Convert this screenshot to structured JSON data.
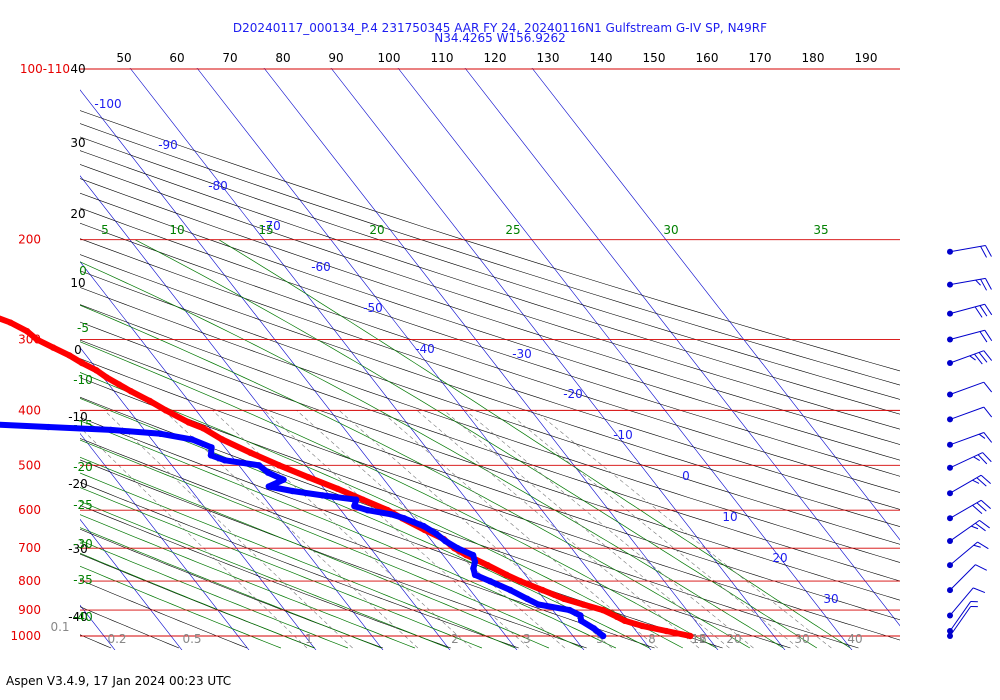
{
  "header": {
    "line1": "D20240117_000134_P.4 231750345 AAR FY 24, 20240116N1 Gulfstream G-IV SP, N49RF",
    "line2": "N34.4265 W156.9262"
  },
  "footer": {
    "version": "Aspen V3.4.9, 17 Jan 2024  00:23 UTC"
  },
  "colors": {
    "temperature": "#ff0000",
    "dewpoint": "#0000ff",
    "isobar": "#d40000",
    "isotherm": "#0000cc",
    "dry_adiabat": "#000000",
    "moist_adiabat": "#007700",
    "mixing_ratio": "#777777",
    "wind_barb": "#0000cc"
  },
  "chart_data": {
    "type": "skew-t",
    "pressure_labels": [
      {
        "label": "100-110",
        "p": 100
      },
      {
        "label": "200",
        "p": 200
      },
      {
        "label": "300",
        "p": 300
      },
      {
        "label": "400",
        "p": 400
      },
      {
        "label": "500",
        "p": 500
      },
      {
        "label": "600",
        "p": 600
      },
      {
        "label": "700",
        "p": 700
      },
      {
        "label": "800",
        "p": 800
      },
      {
        "label": "900",
        "p": 900
      },
      {
        "label": "1000",
        "p": 1000
      }
    ],
    "top_axis_ticks": [
      "50",
      "60",
      "70",
      "80",
      "90",
      "100",
      "110",
      "120",
      "130",
      "140",
      "150",
      "160",
      "170",
      "180",
      "190"
    ],
    "left_altitude_ticks": [
      "40",
      "30",
      "20",
      "10",
      "0",
      "-10",
      "-20",
      "-30",
      "-40"
    ],
    "moist_adiabat_labels": [
      "0",
      "-5",
      "-10",
      "-15",
      "-20",
      "-25",
      "-30",
      "-35",
      "-40"
    ],
    "isotherm_labels": [
      "-100",
      "-90",
      "-80",
      "-70",
      "-60",
      "-50",
      "-40",
      "-30",
      "-20",
      "-10",
      "0",
      "10",
      "20",
      "30"
    ],
    "theta_e_labels": [
      "5",
      "10",
      "15",
      "20",
      "25",
      "30",
      "35"
    ],
    "mixing_ratio_labels": [
      "0.1",
      "0.2",
      "0.5",
      "1",
      "2",
      "3",
      "5",
      "8",
      "12",
      "16",
      "20",
      "30",
      "40"
    ],
    "temperature_profile": [
      {
        "p": 1000,
        "t": 17.5
      },
      {
        "p": 980,
        "t": 14.5
      },
      {
        "p": 960,
        "t": 11.5
      },
      {
        "p": 940,
        "t": 9.5
      },
      {
        "p": 925,
        "t": 8.8
      },
      {
        "p": 900,
        "t": 7.5
      },
      {
        "p": 880,
        "t": 5.2
      },
      {
        "p": 860,
        "t": 3.0
      },
      {
        "p": 830,
        "t": 0.8
      },
      {
        "p": 800,
        "t": -1.5
      },
      {
        "p": 780,
        "t": -2.8
      },
      {
        "p": 750,
        "t": -4.5
      },
      {
        "p": 720,
        "t": -6.5
      },
      {
        "p": 700,
        "t": -7.5
      },
      {
        "p": 675,
        "t": -8.0
      },
      {
        "p": 650,
        "t": -9.8
      },
      {
        "p": 620,
        "t": -11.8
      },
      {
        "p": 600,
        "t": -13.0
      },
      {
        "p": 575,
        "t": -15.5
      },
      {
        "p": 550,
        "t": -18.0
      },
      {
        "p": 525,
        "t": -21.0
      },
      {
        "p": 500,
        "t": -24.0
      },
      {
        "p": 475,
        "t": -26.8
      },
      {
        "p": 450,
        "t": -29.5
      },
      {
        "p": 430,
        "t": -31.0
      },
      {
        "p": 420,
        "t": -32.5
      },
      {
        "p": 400,
        "t": -34.5
      },
      {
        "p": 385,
        "t": -35.8
      },
      {
        "p": 370,
        "t": -37.5
      },
      {
        "p": 360,
        "t": -38.5
      },
      {
        "p": 350,
        "t": -39.5
      },
      {
        "p": 340,
        "t": -40.2
      },
      {
        "p": 330,
        "t": -41.5
      },
      {
        "p": 320,
        "t": -42.5
      },
      {
        "p": 310,
        "t": -44.0
      },
      {
        "p": 300,
        "t": -45.5
      },
      {
        "p": 290,
        "t": -46.0
      },
      {
        "p": 280,
        "t": -47.5
      },
      {
        "p": 270,
        "t": -50.0
      },
      {
        "p": 260,
        "t": -52.0
      },
      {
        "p": 250,
        "t": -52.5
      },
      {
        "p": 240,
        "t": -54.0
      },
      {
        "p": 230,
        "t": -55.0
      },
      {
        "p": 220,
        "t": -56.5
      },
      {
        "p": 210,
        "t": -57.5
      },
      {
        "p": 200,
        "t": -58.5
      },
      {
        "p": 190,
        "t": -59.5
      },
      {
        "p": 185,
        "t": -60.0
      }
    ],
    "dewpoint_profile": [
      {
        "p": 1000,
        "td": 4.5
      },
      {
        "p": 970,
        "td": 4.0
      },
      {
        "p": 940,
        "td": 3.0
      },
      {
        "p": 920,
        "td": 3.5
      },
      {
        "p": 900,
        "td": 2.5
      },
      {
        "p": 880,
        "td": -1.5
      },
      {
        "p": 860,
        "td": -2.5
      },
      {
        "p": 830,
        "td": -4.0
      },
      {
        "p": 800,
        "td": -6.0
      },
      {
        "p": 780,
        "td": -7.5
      },
      {
        "p": 760,
        "td": -7.0
      },
      {
        "p": 740,
        "td": -6.0
      },
      {
        "p": 720,
        "td": -5.5
      },
      {
        "p": 700,
        "td": -7.0
      },
      {
        "p": 680,
        "td": -8.0
      },
      {
        "p": 660,
        "td": -8.5
      },
      {
        "p": 640,
        "td": -9.5
      },
      {
        "p": 620,
        "td": -11.5
      },
      {
        "p": 610,
        "td": -13.0
      },
      {
        "p": 600,
        "td": -16.0
      },
      {
        "p": 590,
        "td": -17.5
      },
      {
        "p": 575,
        "td": -16.5
      },
      {
        "p": 565,
        "td": -21.0
      },
      {
        "p": 555,
        "td": -25.0
      },
      {
        "p": 545,
        "td": -28.0
      },
      {
        "p": 530,
        "td": -25.0
      },
      {
        "p": 515,
        "td": -26.5
      },
      {
        "p": 500,
        "td": -27.0
      },
      {
        "p": 490,
        "td": -31.5
      },
      {
        "p": 480,
        "td": -33.0
      },
      {
        "p": 465,
        "td": -32.0
      },
      {
        "p": 450,
        "td": -34.0
      },
      {
        "p": 440,
        "td": -38.0
      },
      {
        "p": 433,
        "td": -45.0
      },
      {
        "p": 428,
        "td": -54.0
      },
      {
        "p": 423,
        "td": -63.0
      },
      {
        "p": 418,
        "td": -70.0
      },
      {
        "p": 415,
        "td": -68.0
      },
      {
        "p": 410,
        "td": -63.0
      },
      {
        "p": 403,
        "td": -61.0
      },
      {
        "p": 397,
        "td": -66.0
      },
      {
        "p": 390,
        "td": -69.0
      },
      {
        "p": 380,
        "td": -75.0
      },
      {
        "p": 370,
        "td": -77.0
      },
      {
        "p": 360,
        "td": -76.0
      },
      {
        "p": 350,
        "td": -76.0
      },
      {
        "p": 340,
        "td": -73.0
      },
      {
        "p": 330,
        "td": -71.0
      },
      {
        "p": 320,
        "td": -71.5
      },
      {
        "p": 310,
        "td": -70.5
      },
      {
        "p": 300,
        "td": -71.0
      },
      {
        "p": 290,
        "td": -70.0
      },
      {
        "p": 280,
        "td": -71.0
      },
      {
        "p": 270,
        "td": -71.0
      },
      {
        "p": 260,
        "td": -70.5
      },
      {
        "p": 250,
        "td": -70.5
      },
      {
        "p": 240,
        "td": -71.0
      },
      {
        "p": 230,
        "td": -70.5
      },
      {
        "p": 220,
        "td": -70.5
      },
      {
        "p": 210,
        "td": -71.0
      },
      {
        "p": 200,
        "td": -71.0
      }
    ],
    "wind_barbs": [
      {
        "p": 210,
        "dir": 280,
        "spd": 20
      },
      {
        "p": 240,
        "dir": 280,
        "spd": 25
      },
      {
        "p": 270,
        "dir": 285,
        "spd": 30
      },
      {
        "p": 300,
        "dir": 285,
        "spd": 20
      },
      {
        "p": 330,
        "dir": 290,
        "spd": 35
      },
      {
        "p": 375,
        "dir": 290,
        "spd": 10
      },
      {
        "p": 415,
        "dir": 290,
        "spd": 10
      },
      {
        "p": 460,
        "dir": 290,
        "spd": 15
      },
      {
        "p": 505,
        "dir": 295,
        "spd": 25
      },
      {
        "p": 560,
        "dir": 300,
        "spd": 25
      },
      {
        "p": 620,
        "dir": 300,
        "spd": 30
      },
      {
        "p": 680,
        "dir": 305,
        "spd": 25
      },
      {
        "p": 750,
        "dir": 310,
        "spd": 15
      },
      {
        "p": 830,
        "dir": 315,
        "spd": 10
      },
      {
        "p": 920,
        "dir": 320,
        "spd": 10
      },
      {
        "p": 980,
        "dir": 325,
        "spd": 5
      },
      {
        "p": 1000,
        "dir": 325,
        "spd": 5
      }
    ]
  }
}
